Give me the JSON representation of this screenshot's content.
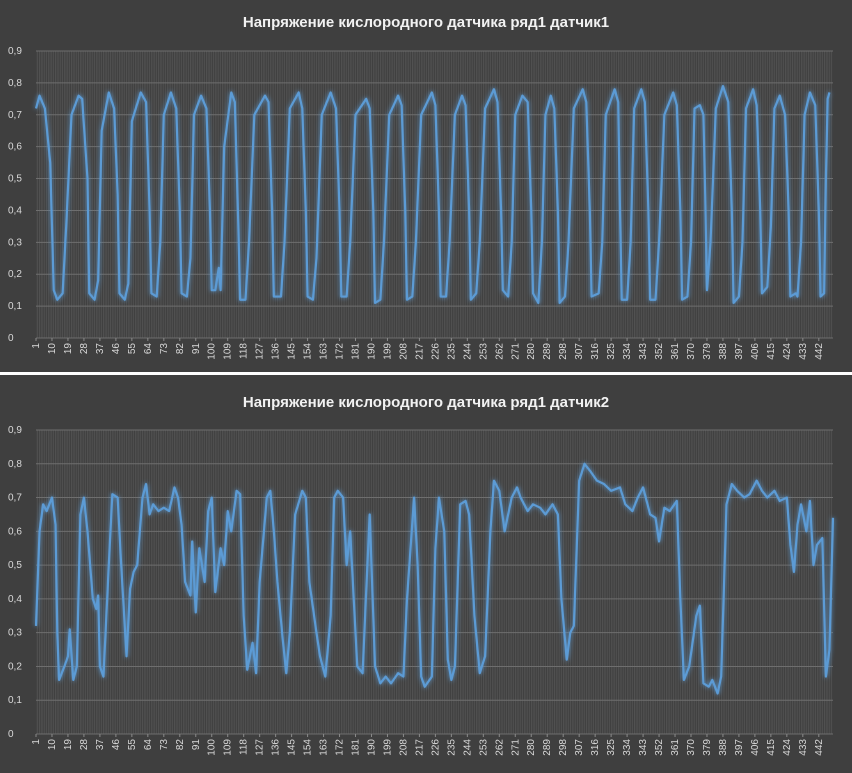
{
  "chart_data": [
    {
      "type": "line",
      "title": "Напряжение кислородного датчика ряд1 датчик1",
      "xlim": [
        1,
        450
      ],
      "xticks": [
        1,
        10,
        19,
        28,
        37,
        46,
        55,
        64,
        73,
        82,
        91,
        100,
        109,
        118,
        127,
        136,
        145,
        154,
        163,
        172,
        181,
        190,
        199,
        208,
        217,
        226,
        235,
        244,
        253,
        262,
        271,
        280,
        289,
        298,
        307,
        316,
        325,
        334,
        343,
        352,
        361,
        370,
        379,
        388,
        397,
        406,
        415,
        424,
        433,
        442
      ],
      "ylim": [
        0,
        0.9
      ],
      "yticks": [
        0,
        {
          "value": 0.1,
          "label": "0,1"
        },
        {
          "value": 0.2,
          "label": "0,2"
        },
        {
          "value": 0.3,
          "label": "0,3"
        },
        {
          "value": 0.4,
          "label": "0,4"
        },
        {
          "value": 0.5,
          "label": "0,5"
        },
        {
          "value": 0.6,
          "label": "0,6"
        },
        {
          "value": 0.7,
          "label": "0,7"
        },
        {
          "value": 0.8,
          "label": "0,8"
        },
        {
          "value": 0.9,
          "label": "0,9"
        }
      ],
      "grid": true,
      "series": [
        {
          "color": "#5b9bd5",
          "x": [
            1,
            3,
            6,
            9,
            11,
            13,
            16,
            18,
            21,
            25,
            27,
            30,
            31,
            34,
            36,
            38,
            42,
            45,
            47,
            48,
            51,
            53,
            55,
            60,
            63,
            65,
            66,
            69,
            71,
            73,
            77,
            80,
            82,
            83,
            86,
            88,
            90,
            94,
            97,
            99,
            100,
            102,
            104,
            105,
            107,
            111,
            113,
            115,
            116,
            119,
            121,
            124,
            130,
            132,
            134,
            135,
            139,
            141,
            144,
            149,
            151,
            153,
            154,
            157,
            159,
            162,
            167,
            170,
            172,
            173,
            176,
            178,
            181,
            187,
            189,
            191,
            192,
            195,
            197,
            200,
            205,
            207,
            209,
            210,
            213,
            215,
            218,
            224,
            226,
            228,
            229,
            232,
            234,
            237,
            241,
            243,
            245,
            246,
            249,
            251,
            254,
            259,
            261,
            263,
            264,
            267,
            269,
            271,
            275,
            278,
            280,
            281,
            284,
            286,
            288,
            291,
            293,
            295,
            296,
            299,
            301,
            304,
            309,
            311,
            313,
            314,
            318,
            320,
            322,
            327,
            329,
            330,
            331,
            334,
            336,
            338,
            342,
            344,
            346,
            347,
            350,
            352,
            355,
            360,
            362,
            364,
            365,
            368,
            370,
            372,
            375,
            377,
            378,
            379,
            381,
            384,
            388,
            391,
            393,
            394,
            397,
            399,
            401,
            405,
            407,
            409,
            410,
            413,
            415,
            417,
            420,
            423,
            425,
            426,
            429,
            430,
            432,
            434,
            437,
            440,
            442,
            443,
            445,
            446,
            447,
            448
          ],
          "values": [
            0.72,
            0.76,
            0.72,
            0.55,
            0.15,
            0.12,
            0.14,
            0.35,
            0.7,
            0.76,
            0.75,
            0.5,
            0.14,
            0.12,
            0.18,
            0.65,
            0.77,
            0.72,
            0.45,
            0.14,
            0.12,
            0.17,
            0.68,
            0.77,
            0.74,
            0.4,
            0.14,
            0.13,
            0.3,
            0.7,
            0.77,
            0.72,
            0.4,
            0.14,
            0.13,
            0.25,
            0.7,
            0.76,
            0.72,
            0.4,
            0.15,
            0.15,
            0.22,
            0.15,
            0.6,
            0.77,
            0.74,
            0.35,
            0.12,
            0.12,
            0.3,
            0.7,
            0.76,
            0.74,
            0.4,
            0.13,
            0.13,
            0.3,
            0.72,
            0.77,
            0.72,
            0.4,
            0.13,
            0.12,
            0.25,
            0.7,
            0.77,
            0.72,
            0.4,
            0.13,
            0.13,
            0.3,
            0.7,
            0.75,
            0.72,
            0.4,
            0.11,
            0.12,
            0.3,
            0.7,
            0.76,
            0.73,
            0.4,
            0.12,
            0.13,
            0.3,
            0.7,
            0.77,
            0.73,
            0.4,
            0.13,
            0.13,
            0.3,
            0.7,
            0.76,
            0.73,
            0.4,
            0.12,
            0.14,
            0.3,
            0.72,
            0.78,
            0.74,
            0.4,
            0.15,
            0.13,
            0.3,
            0.7,
            0.76,
            0.74,
            0.4,
            0.14,
            0.11,
            0.3,
            0.7,
            0.76,
            0.72,
            0.4,
            0.11,
            0.13,
            0.3,
            0.72,
            0.78,
            0.74,
            0.4,
            0.13,
            0.14,
            0.3,
            0.7,
            0.78,
            0.74,
            0.4,
            0.12,
            0.12,
            0.3,
            0.72,
            0.78,
            0.74,
            0.4,
            0.12,
            0.12,
            0.3,
            0.7,
            0.77,
            0.73,
            0.4,
            0.12,
            0.13,
            0.3,
            0.72,
            0.73,
            0.7,
            0.45,
            0.15,
            0.3,
            0.72,
            0.79,
            0.74,
            0.4,
            0.11,
            0.13,
            0.3,
            0.72,
            0.78,
            0.73,
            0.4,
            0.14,
            0.16,
            0.35,
            0.72,
            0.76,
            0.7,
            0.4,
            0.13,
            0.14,
            0.13,
            0.3,
            0.7,
            0.77,
            0.73,
            0.4,
            0.13,
            0.14,
            0.5,
            0.75,
            0.77
          ]
        }
      ]
    },
    {
      "type": "line",
      "title": "Напряжение кислородного датчика ряд1 датчик2",
      "xlim": [
        1,
        450
      ],
      "xticks": [
        1,
        10,
        19,
        28,
        37,
        46,
        55,
        64,
        73,
        82,
        91,
        100,
        109,
        118,
        127,
        136,
        145,
        154,
        163,
        172,
        181,
        190,
        199,
        208,
        217,
        226,
        235,
        244,
        253,
        262,
        271,
        280,
        289,
        298,
        307,
        316,
        325,
        334,
        343,
        352,
        361,
        370,
        379,
        388,
        397,
        406,
        415,
        424,
        433,
        442
      ],
      "ylim": [
        0,
        0.9
      ],
      "yticks": [
        0,
        {
          "value": 0.1,
          "label": "0,1"
        },
        {
          "value": 0.2,
          "label": "0,2"
        },
        {
          "value": 0.3,
          "label": "0,3"
        },
        {
          "value": 0.4,
          "label": "0,4"
        },
        {
          "value": 0.5,
          "label": "0,5"
        },
        {
          "value": 0.6,
          "label": "0,6"
        },
        {
          "value": 0.7,
          "label": "0,7"
        },
        {
          "value": 0.8,
          "label": "0,8"
        },
        {
          "value": 0.9,
          "label": "0,9"
        }
      ],
      "grid": true,
      "series": [
        {
          "color": "#5b9bd5",
          "x": [
            1,
            3,
            5,
            7,
            10,
            12,
            13,
            14,
            17,
            19,
            20,
            22,
            24,
            26,
            28,
            30,
            33,
            35,
            36,
            37,
            39,
            42,
            44,
            47,
            49,
            52,
            54,
            56,
            58,
            61,
            63,
            65,
            67,
            70,
            73,
            76,
            79,
            81,
            83,
            85,
            88,
            89,
            91,
            93,
            96,
            98,
            100,
            102,
            105,
            107,
            109,
            111,
            114,
            116,
            118,
            120,
            123,
            125,
            127,
            131,
            133,
            135,
            137,
            140,
            142,
            144,
            147,
            151,
            153,
            155,
            159,
            161,
            164,
            167,
            169,
            171,
            174,
            176,
            178,
            180,
            182,
            185,
            187,
            189,
            190,
            192,
            195,
            198,
            201,
            205,
            208,
            210,
            214,
            216,
            218,
            220,
            224,
            226,
            228,
            231,
            233,
            235,
            237,
            240,
            243,
            245,
            248,
            251,
            254,
            257,
            259,
            262,
            265,
            269,
            272,
            274,
            278,
            281,
            285,
            288,
            292,
            295,
            297,
            300,
            302,
            304,
            307,
            310,
            313,
            317,
            321,
            325,
            330,
            333,
            337,
            340,
            343,
            347,
            350,
            352,
            355,
            358,
            362,
            364,
            366,
            369,
            373,
            375,
            377,
            380,
            382,
            385,
            387,
            390,
            393,
            396,
            400,
            403,
            407,
            410,
            413,
            417,
            420,
            424,
            426,
            428,
            430,
            432,
            435,
            437,
            439,
            441,
            444,
            446,
            448,
            450
          ],
          "values": [
            0.32,
            0.6,
            0.68,
            0.66,
            0.7,
            0.62,
            0.3,
            0.16,
            0.2,
            0.23,
            0.31,
            0.16,
            0.2,
            0.65,
            0.7,
            0.6,
            0.4,
            0.37,
            0.41,
            0.2,
            0.17,
            0.5,
            0.71,
            0.7,
            0.5,
            0.23,
            0.43,
            0.48,
            0.5,
            0.7,
            0.74,
            0.65,
            0.68,
            0.66,
            0.67,
            0.66,
            0.73,
            0.7,
            0.62,
            0.45,
            0.41,
            0.57,
            0.36,
            0.55,
            0.45,
            0.66,
            0.7,
            0.42,
            0.55,
            0.5,
            0.66,
            0.6,
            0.72,
            0.71,
            0.35,
            0.19,
            0.27,
            0.18,
            0.45,
            0.7,
            0.72,
            0.6,
            0.45,
            0.28,
            0.18,
            0.3,
            0.65,
            0.72,
            0.7,
            0.45,
            0.3,
            0.23,
            0.17,
            0.35,
            0.7,
            0.72,
            0.7,
            0.5,
            0.6,
            0.4,
            0.2,
            0.18,
            0.42,
            0.65,
            0.5,
            0.2,
            0.15,
            0.17,
            0.15,
            0.18,
            0.17,
            0.4,
            0.7,
            0.5,
            0.17,
            0.14,
            0.17,
            0.55,
            0.7,
            0.6,
            0.22,
            0.16,
            0.2,
            0.68,
            0.69,
            0.65,
            0.35,
            0.18,
            0.23,
            0.6,
            0.75,
            0.72,
            0.6,
            0.7,
            0.73,
            0.7,
            0.66,
            0.68,
            0.67,
            0.65,
            0.68,
            0.65,
            0.4,
            0.22,
            0.3,
            0.32,
            0.75,
            0.8,
            0.78,
            0.75,
            0.74,
            0.72,
            0.73,
            0.68,
            0.66,
            0.7,
            0.73,
            0.65,
            0.64,
            0.57,
            0.67,
            0.66,
            0.69,
            0.4,
            0.16,
            0.2,
            0.35,
            0.38,
            0.15,
            0.14,
            0.16,
            0.12,
            0.17,
            0.68,
            0.74,
            0.72,
            0.7,
            0.71,
            0.75,
            0.72,
            0.7,
            0.72,
            0.69,
            0.7,
            0.56,
            0.48,
            0.62,
            0.68,
            0.6,
            0.69,
            0.5,
            0.56,
            0.58,
            0.17,
            0.25,
            0.64
          ]
        }
      ]
    }
  ]
}
